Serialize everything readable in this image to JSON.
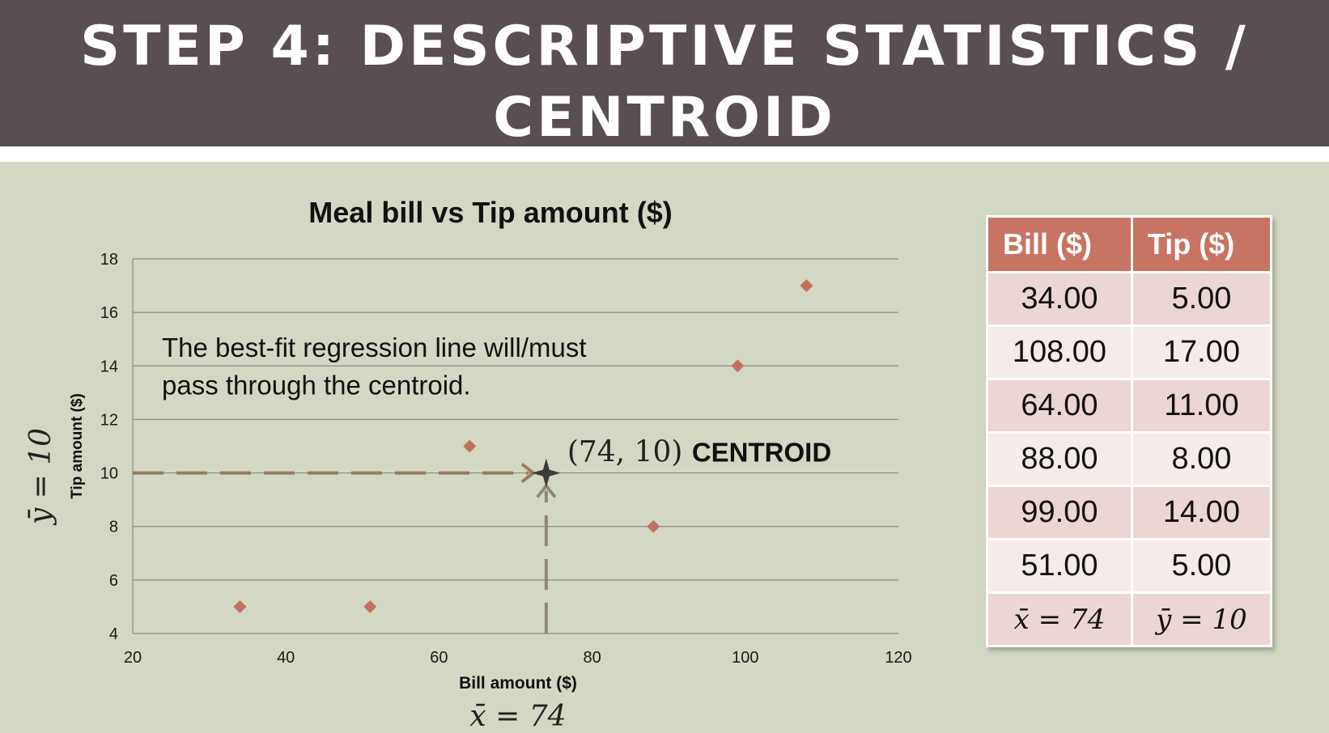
{
  "header": {
    "title_line1": "STEP 4: DESCRIPTIVE STATISTICS /",
    "title_line2": "CENTROID"
  },
  "chart_data": {
    "type": "scatter",
    "title": "Meal bill vs Tip amount ($)",
    "xlabel": "Bill amount ($)",
    "ylabel": "Tip amount ($)",
    "xlim": [
      20,
      120
    ],
    "ylim": [
      4,
      18
    ],
    "xticks": [
      20,
      40,
      60,
      80,
      100,
      120
    ],
    "yticks": [
      4,
      6,
      8,
      10,
      12,
      14,
      16,
      18
    ],
    "grid": "horizontal",
    "legend": "none",
    "points": [
      {
        "x": 34,
        "y": 5
      },
      {
        "x": 108,
        "y": 17
      },
      {
        "x": 64,
        "y": 11
      },
      {
        "x": 88,
        "y": 8
      },
      {
        "x": 99,
        "y": 14
      },
      {
        "x": 51,
        "y": 5
      }
    ],
    "centroid": {
      "x": 74,
      "y": 10
    },
    "annotations": {
      "note_line1": "The best-fit regression line will/must",
      "note_line2": "pass through the centroid.",
      "centroid_coords": "(74, 10)",
      "centroid_label": "CENTROID",
      "xbar_label": "x̄ = 74",
      "ybar_label": "ȳ = 10"
    },
    "colors": {
      "point": "#c5705f",
      "x_arrow": "#8f8873",
      "y_arrow": "#9a7a5e",
      "centroid": "#3d3a3a",
      "grid": "#8a8a8a"
    }
  },
  "table": {
    "headers": [
      "Bill ($)",
      "Tip ($)"
    ],
    "rows": [
      [
        "34.00",
        "5.00"
      ],
      [
        "108.00",
        "17.00"
      ],
      [
        "64.00",
        "11.00"
      ],
      [
        "88.00",
        "8.00"
      ],
      [
        "99.00",
        "14.00"
      ],
      [
        "51.00",
        "5.00"
      ]
    ],
    "stats_row": [
      "x̄ = 74",
      "ȳ = 10"
    ],
    "colors": {
      "header_bg": "#c87463",
      "row_dark": "#ebd6d4",
      "row_light": "#f5ecea"
    }
  }
}
